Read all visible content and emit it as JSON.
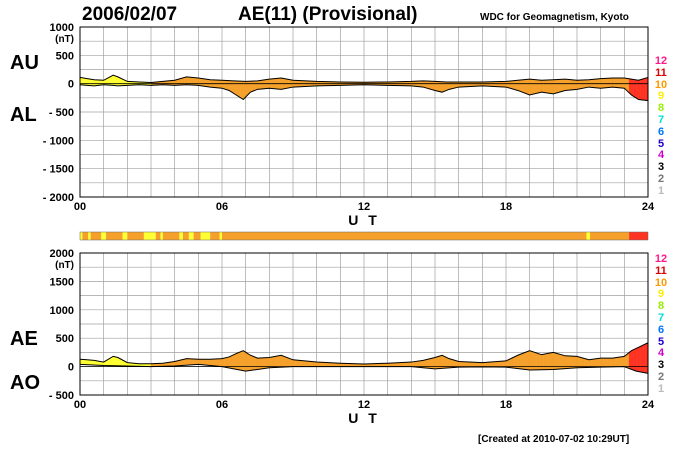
{
  "header": {
    "date": "2006/02/07",
    "title": "AE(11) (Provisional)",
    "credit": "WDC for Geomagnetism, Kyoto"
  },
  "footer": {
    "created": "[Created at 2010-07-02 10:29UT]"
  },
  "panel_labels": {
    "top_upper": "AU",
    "top_lower": "AL",
    "bottom_upper": "AE",
    "bottom_lower": "AO"
  },
  "legend": {
    "items": [
      {
        "label": "12",
        "color": "#ff1a8c"
      },
      {
        "label": "11",
        "color": "#dd0000"
      },
      {
        "label": "10",
        "color": "#ff9900"
      },
      {
        "label": "9",
        "color": "#ffee00"
      },
      {
        "label": "8",
        "color": "#99ee00"
      },
      {
        "label": "7",
        "color": "#00dddd"
      },
      {
        "label": "6",
        "color": "#0077ff"
      },
      {
        "label": "5",
        "color": "#2200cc"
      },
      {
        "label": "4",
        "color": "#cc00cc"
      },
      {
        "label": "3",
        "color": "#000000"
      },
      {
        "label": "2",
        "color": "#777777"
      },
      {
        "label": "1",
        "color": "#bbbbbb"
      }
    ]
  },
  "colors": {
    "fill_quiet": "#ffff33",
    "fill_active": "#f5a02a",
    "fill_strong": "#ff3322",
    "grid": "#a0a0a0"
  },
  "chart_data": [
    {
      "type": "area",
      "ylabel": "(nT)",
      "xlabel": "U T",
      "ylim": [
        -2000,
        1000
      ],
      "yticks": [
        1000,
        500,
        0,
        -500,
        -1000,
        -1500,
        -2000
      ],
      "xlim": [
        0,
        24
      ],
      "xticks": [
        0,
        6,
        12,
        18,
        24
      ],
      "xtick_labels": [
        "00",
        "06",
        "12",
        "18",
        "24"
      ],
      "grid": true,
      "series": [
        {
          "name": "AU",
          "x": [
            0,
            0.3,
            0.6,
            1.0,
            1.4,
            1.6,
            2.0,
            2.5,
            3.0,
            3.5,
            4.0,
            4.5,
            5.0,
            5.5,
            6.0,
            6.5,
            7.0,
            7.5,
            8.0,
            8.5,
            9.0,
            10.0,
            11.0,
            12.0,
            13.0,
            14.0,
            14.5,
            15.0,
            15.5,
            16.0,
            17.0,
            18.0,
            18.5,
            19.0,
            19.5,
            20.0,
            20.5,
            21.0,
            21.5,
            22.0,
            22.5,
            23.0,
            23.3,
            23.6,
            24.0
          ],
          "y": [
            110,
            90,
            70,
            60,
            150,
            120,
            40,
            30,
            20,
            40,
            60,
            120,
            100,
            70,
            60,
            50,
            40,
            50,
            80,
            100,
            60,
            40,
            30,
            25,
            30,
            40,
            50,
            40,
            30,
            30,
            30,
            40,
            60,
            80,
            60,
            70,
            80,
            60,
            70,
            90,
            100,
            100,
            80,
            60,
            110
          ]
        },
        {
          "name": "AL",
          "x": [
            0,
            0.3,
            0.6,
            1.0,
            1.4,
            1.6,
            2.0,
            2.5,
            3.0,
            3.5,
            4.0,
            4.5,
            5.0,
            5.5,
            6.0,
            6.3,
            6.6,
            6.9,
            7.2,
            7.5,
            8.0,
            8.5,
            9.0,
            10.0,
            11.0,
            12.0,
            13.0,
            14.0,
            14.5,
            15.0,
            15.3,
            15.6,
            16.0,
            17.0,
            18.0,
            18.5,
            19.0,
            19.5,
            20.0,
            20.5,
            21.0,
            21.5,
            22.0,
            22.5,
            23.0,
            23.3,
            23.6,
            24.0
          ],
          "y": [
            -20,
            -30,
            -40,
            -20,
            -30,
            -40,
            -30,
            -20,
            -30,
            -20,
            -30,
            -20,
            -30,
            -60,
            -80,
            -120,
            -200,
            -280,
            -150,
            -100,
            -80,
            -100,
            -60,
            -40,
            -30,
            -20,
            -30,
            -40,
            -60,
            -120,
            -150,
            -100,
            -60,
            -40,
            -60,
            -120,
            -200,
            -150,
            -180,
            -120,
            -100,
            -60,
            -80,
            -60,
            -80,
            -200,
            -280,
            -300
          ]
        }
      ]
    },
    {
      "type": "area",
      "ylabel": "(nT)",
      "xlabel": "U T",
      "ylim": [
        -500,
        2000
      ],
      "yticks": [
        2000,
        1500,
        1000,
        500,
        0,
        -500
      ],
      "xlim": [
        0,
        24
      ],
      "xticks": [
        0,
        6,
        12,
        18,
        24
      ],
      "xtick_labels": [
        "00",
        "06",
        "12",
        "18",
        "24"
      ],
      "grid": true,
      "series": [
        {
          "name": "AE",
          "x": [
            0,
            0.3,
            0.6,
            1.0,
            1.4,
            1.6,
            2.0,
            2.5,
            3.0,
            3.5,
            4.0,
            4.5,
            5.0,
            5.5,
            6.0,
            6.3,
            6.6,
            6.9,
            7.2,
            7.5,
            8.0,
            8.5,
            9.0,
            10.0,
            11.0,
            12.0,
            13.0,
            14.0,
            14.5,
            15.0,
            15.3,
            15.6,
            16.0,
            17.0,
            18.0,
            18.5,
            19.0,
            19.5,
            20.0,
            20.5,
            21.0,
            21.5,
            22.0,
            22.5,
            23.0,
            23.3,
            23.6,
            24.0
          ],
          "y": [
            130,
            120,
            110,
            80,
            180,
            160,
            70,
            50,
            50,
            60,
            90,
            140,
            130,
            130,
            140,
            170,
            230,
            280,
            200,
            150,
            160,
            200,
            120,
            80,
            60,
            45,
            60,
            80,
            110,
            160,
            200,
            140,
            90,
            70,
            100,
            200,
            280,
            210,
            250,
            190,
            180,
            120,
            150,
            150,
            180,
            280,
            340,
            420
          ]
        },
        {
          "name": "AO",
          "x": [
            0,
            1.0,
            2.0,
            3.0,
            4.0,
            5.0,
            6.0,
            7.0,
            8.0,
            9.0,
            10.0,
            11.0,
            12.0,
            13.0,
            14.0,
            15.0,
            16.0,
            17.0,
            18.0,
            19.0,
            20.0,
            21.0,
            22.0,
            23.0,
            23.5,
            24.0
          ],
          "y": [
            40,
            20,
            10,
            0,
            10,
            40,
            0,
            -80,
            -20,
            0,
            0,
            0,
            0,
            0,
            0,
            -40,
            -10,
            -5,
            -10,
            -60,
            -50,
            -20,
            -10,
            0,
            -80,
            -120
          ]
        }
      ]
    }
  ],
  "activity_bar": {
    "segments": [
      {
        "from": 0,
        "to": 0.1,
        "level": "quiet"
      },
      {
        "from": 0.1,
        "to": 0.35,
        "level": "active"
      },
      {
        "from": 0.35,
        "to": 0.45,
        "level": "quiet"
      },
      {
        "from": 0.45,
        "to": 0.9,
        "level": "active"
      },
      {
        "from": 0.9,
        "to": 1.1,
        "level": "quiet"
      },
      {
        "from": 1.1,
        "to": 1.8,
        "level": "active"
      },
      {
        "from": 1.8,
        "to": 2.0,
        "level": "quiet"
      },
      {
        "from": 2.0,
        "to": 2.7,
        "level": "active"
      },
      {
        "from": 2.7,
        "to": 3.2,
        "level": "quiet"
      },
      {
        "from": 3.2,
        "to": 3.4,
        "level": "active"
      },
      {
        "from": 3.4,
        "to": 3.5,
        "level": "quiet"
      },
      {
        "from": 3.5,
        "to": 4.2,
        "level": "active"
      },
      {
        "from": 4.2,
        "to": 4.35,
        "level": "quiet"
      },
      {
        "from": 4.35,
        "to": 4.6,
        "level": "active"
      },
      {
        "from": 4.6,
        "to": 4.8,
        "level": "quiet"
      },
      {
        "from": 4.8,
        "to": 5.1,
        "level": "active"
      },
      {
        "from": 5.1,
        "to": 5.5,
        "level": "quiet"
      },
      {
        "from": 5.5,
        "to": 5.9,
        "level": "active"
      },
      {
        "from": 5.9,
        "to": 6.0,
        "level": "quiet"
      },
      {
        "from": 6.0,
        "to": 21.4,
        "level": "active"
      },
      {
        "from": 21.4,
        "to": 21.55,
        "level": "quiet"
      },
      {
        "from": 21.55,
        "to": 23.2,
        "level": "active"
      },
      {
        "from": 23.2,
        "to": 24.0,
        "level": "strong"
      }
    ]
  }
}
